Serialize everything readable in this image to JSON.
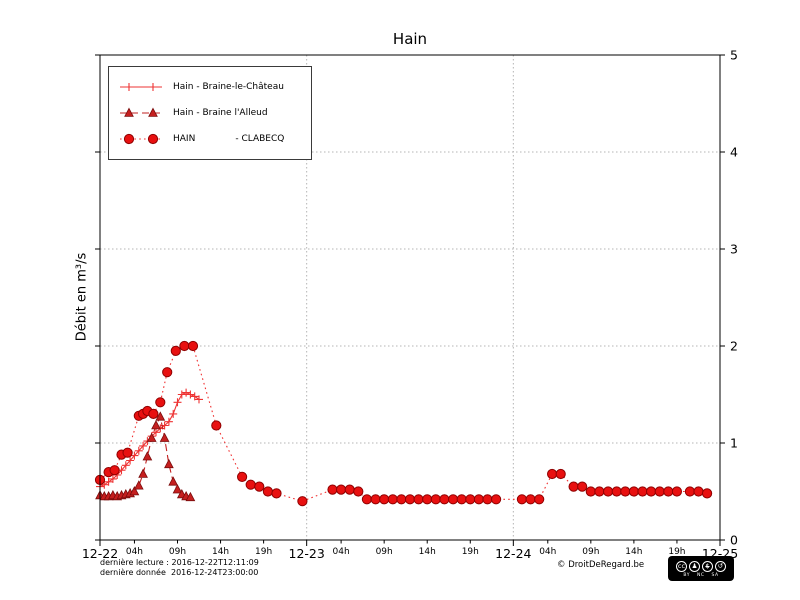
{
  "chart_data": {
    "type": "line",
    "title": "Hain",
    "xlabel": "",
    "ylabel": "Débit en m³/s",
    "ylim": [
      0,
      5
    ],
    "y_ticks": [
      0,
      1,
      2,
      3,
      4,
      5
    ],
    "x_unit": "hours from 12-22 00:00",
    "xlim_hours": [
      0,
      72
    ],
    "x_major_ticks": [
      {
        "hour": 0,
        "label": "12-22"
      },
      {
        "hour": 24,
        "label": "12-23"
      },
      {
        "hour": 48,
        "label": "12-24"
      },
      {
        "hour": 72,
        "label": "12-25"
      }
    ],
    "x_minor_ticks": [
      {
        "hour": 4,
        "label": "04h"
      },
      {
        "hour": 9,
        "label": "09h"
      },
      {
        "hour": 14,
        "label": "14h"
      },
      {
        "hour": 19,
        "label": "19h"
      },
      {
        "hour": 28,
        "label": "04h"
      },
      {
        "hour": 33,
        "label": "09h"
      },
      {
        "hour": 38,
        "label": "14h"
      },
      {
        "hour": 43,
        "label": "19h"
      },
      {
        "hour": 52,
        "label": "04h"
      },
      {
        "hour": 57,
        "label": "09h"
      },
      {
        "hour": 62,
        "label": "14h"
      },
      {
        "hour": 67,
        "label": "19h"
      }
    ],
    "grid": {
      "vertical_hours": [
        24,
        48
      ],
      "horizontal_values": [
        1,
        2,
        3,
        4
      ]
    },
    "legend_position": "upper left",
    "series": [
      {
        "name": "Hain - Braine-le-Château",
        "line": "solid",
        "marker": "plus",
        "line_color": "#ee3333",
        "marker_color": "#ee3333",
        "marker_edge": "#ee3333",
        "x": [
          0,
          0.5,
          1,
          1.5,
          2,
          2.5,
          3,
          3.5,
          4,
          4.5,
          5,
          5.5,
          6,
          6.5,
          7,
          7.5,
          8,
          8.5,
          9,
          9.5,
          10,
          10.5,
          11,
          11.5
        ],
        "values": [
          0.55,
          0.57,
          0.6,
          0.63,
          0.67,
          0.72,
          0.77,
          0.82,
          0.87,
          0.92,
          0.97,
          1.02,
          1.07,
          1.11,
          1.15,
          1.18,
          1.22,
          1.3,
          1.42,
          1.5,
          1.52,
          1.5,
          1.48,
          1.45
        ]
      },
      {
        "name": "Hain - Braine l'Alleud",
        "line": "dashed",
        "marker": "triangle",
        "line_color": "#c22020",
        "marker_color": "#c51f1f",
        "marker_edge": "#7a0c0c",
        "x": [
          0,
          0.5,
          1,
          1.5,
          2,
          2.5,
          3,
          3.5,
          4,
          4.5,
          5,
          5.5,
          6,
          6.5,
          7,
          7.5,
          8,
          8.5,
          9,
          9.5,
          10,
          10.5
        ],
        "values": [
          0.46,
          0.45,
          0.45,
          0.46,
          0.45,
          0.46,
          0.47,
          0.48,
          0.5,
          0.56,
          0.68,
          0.86,
          1.05,
          1.18,
          1.27,
          1.05,
          0.78,
          0.6,
          0.52,
          0.47,
          0.45,
          0.44
        ]
      },
      {
        "name": "HAIN              - CLABECQ",
        "line": "dotted",
        "marker": "circle",
        "line_color": "#f03030",
        "marker_color": "#e81010",
        "marker_edge": "#8f0000",
        "x": [
          0,
          1,
          1.7,
          2.5,
          3.2,
          4.5,
          5,
          5.5,
          6.2,
          7,
          7.8,
          8.8,
          9.8,
          10.8,
          13.5,
          16.5,
          17.5,
          18.5,
          19.5,
          20.5,
          23.5,
          27,
          28,
          29,
          30,
          31,
          32,
          33,
          34,
          35,
          36,
          37,
          38,
          39,
          40,
          41,
          42,
          43,
          44,
          45,
          46,
          49,
          50,
          51,
          52.5,
          53.5,
          55,
          56,
          57,
          58,
          59,
          60,
          61,
          62,
          63,
          64,
          65,
          66,
          67,
          68.5,
          69.5,
          70.5
        ],
        "values": [
          0.62,
          0.7,
          0.72,
          0.88,
          0.9,
          1.28,
          1.3,
          1.33,
          1.3,
          1.42,
          1.73,
          1.95,
          2.0,
          2.0,
          1.18,
          0.65,
          0.57,
          0.55,
          0.5,
          0.48,
          0.4,
          0.52,
          0.52,
          0.52,
          0.5,
          0.42,
          0.42,
          0.42,
          0.42,
          0.42,
          0.42,
          0.42,
          0.42,
          0.42,
          0.42,
          0.42,
          0.42,
          0.42,
          0.42,
          0.42,
          0.42,
          0.42,
          0.42,
          0.42,
          0.68,
          0.68,
          0.55,
          0.55,
          0.5,
          0.5,
          0.5,
          0.5,
          0.5,
          0.5,
          0.5,
          0.5,
          0.5,
          0.5,
          0.5,
          0.5,
          0.5,
          0.48
        ]
      }
    ]
  },
  "footer": {
    "last_reading": "dernière lecture : 2016-12-22T12:11:09",
    "last_data": "dernière donnée  2016-12-24T23:00:00",
    "copyright": "© DroitDeRegard.be",
    "license": {
      "glyphs": [
        "cc",
        "♟",
        "$",
        "↺"
      ],
      "labels": [
        "BY",
        "NC",
        "SA"
      ]
    }
  }
}
